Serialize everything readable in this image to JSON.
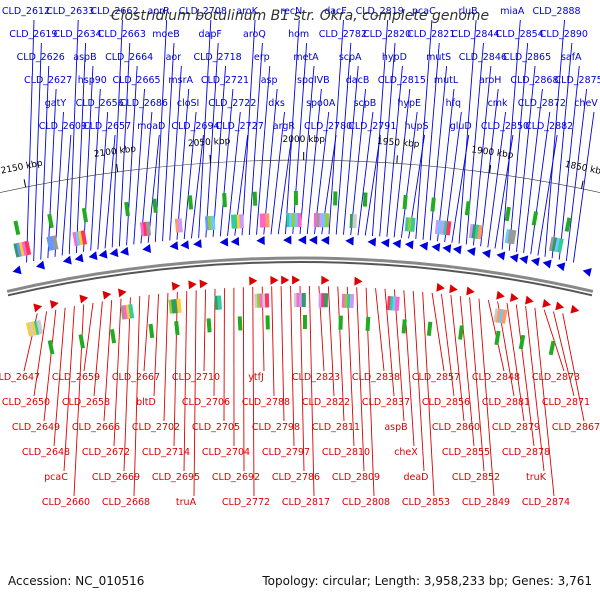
{
  "title": "Clostridium botulinum B1 str. Okra, complete genome",
  "footer": {
    "accession": "Accession: NC_010516",
    "stats": "Topology: circular; Length: 3,958,233 bp; Genes: 3,761"
  },
  "colors": {
    "forward_strand": "#0000dd",
    "reverse_strand": "#dd0000",
    "backbone": "#888888",
    "tick": "#000000",
    "feature_marker": "#22aa22"
  },
  "scale_ticks": [
    "2150 kbp",
    "2100 kbp",
    "2050 kbp",
    "2000 kbp",
    "1950 kbp",
    "1900 kbp",
    "1850 kbp"
  ],
  "forward_labels": [
    "CLD_2612",
    "CLD_2619",
    "CLD_2626",
    "CLD_2627",
    "gatY",
    "CLD_2609",
    "CLD_2633",
    "CLD_2634",
    "aspB",
    "hsp90",
    "CLD_2656",
    "CLD_2657",
    "CLD_2662",
    "CLD_2663",
    "CLD_2664",
    "CLD_2665",
    "CLD_2686",
    "moaD",
    "aorR",
    "moeB",
    "aor",
    "msrA",
    "cloSI",
    "CLD_2694",
    "CLD_2708",
    "dapF",
    "CLD_2718",
    "CLD_2721",
    "CLD_2722",
    "CLD_2727",
    "aroK",
    "aroQ",
    "erp",
    "asp",
    "dxs",
    "argR",
    "recN",
    "hom",
    "metA",
    "spoIVB",
    "spo0A",
    "CLD_2780",
    "dacF",
    "CLD_2782",
    "scpA",
    "dacB",
    "scpB",
    "CLD_2791",
    "CLD_2819",
    "CLD_2820",
    "hypD",
    "CLD_2815",
    "hypE",
    "hupS",
    "pcaC",
    "CLD_2821",
    "mutS",
    "mutL",
    "hfq",
    "gluD",
    "rluB",
    "CLD_2844",
    "CLD_2846",
    "aroH",
    "cmk",
    "CLD_2850",
    "miaA",
    "CLD_2854",
    "CLD_2865",
    "CLD_2868",
    "CLD_2872",
    "CLD_2882",
    "CLD_2888",
    "CLD_2890",
    "safA",
    "CLD_2875",
    "cheV"
  ],
  "reverse_labels": [
    "CLD_2647",
    "CLD_2650",
    "CLD_2649",
    "CLD_2648",
    "pcaC",
    "CLD_2660",
    "CLD_2659",
    "CLD_2658",
    "CLD_2666",
    "CLD_2672",
    "CLD_2669",
    "CLD_2668",
    "CLD_2667",
    "bltD",
    "CLD_2702",
    "CLD_2714",
    "CLD_2695",
    "truA",
    "CLD_2710",
    "CLD_2706",
    "CLD_2705",
    "CLD_2704",
    "CLD_2692",
    "CLD_2772",
    "ytfJ",
    "CLD_2788",
    "CLD_2798",
    "CLD_2797",
    "CLD_2786",
    "CLD_2817",
    "CLD_2823",
    "CLD_2822",
    "CLD_2811",
    "CLD_2810",
    "CLD_2809",
    "CLD_2808",
    "CLD_2838",
    "CLD_2837",
    "aspB",
    "cheX",
    "deaD",
    "CLD_2853",
    "CLD_2857",
    "CLD_2856",
    "CLD_2860",
    "CLD_2855",
    "CLD_2852",
    "CLD_2849",
    "CLD_2848",
    "CLD_2881",
    "CLD_2879",
    "CLD_2878",
    "truK",
    "CLD_2874",
    "CLD_2873",
    "CLD_2871",
    "CLD_2867"
  ]
}
